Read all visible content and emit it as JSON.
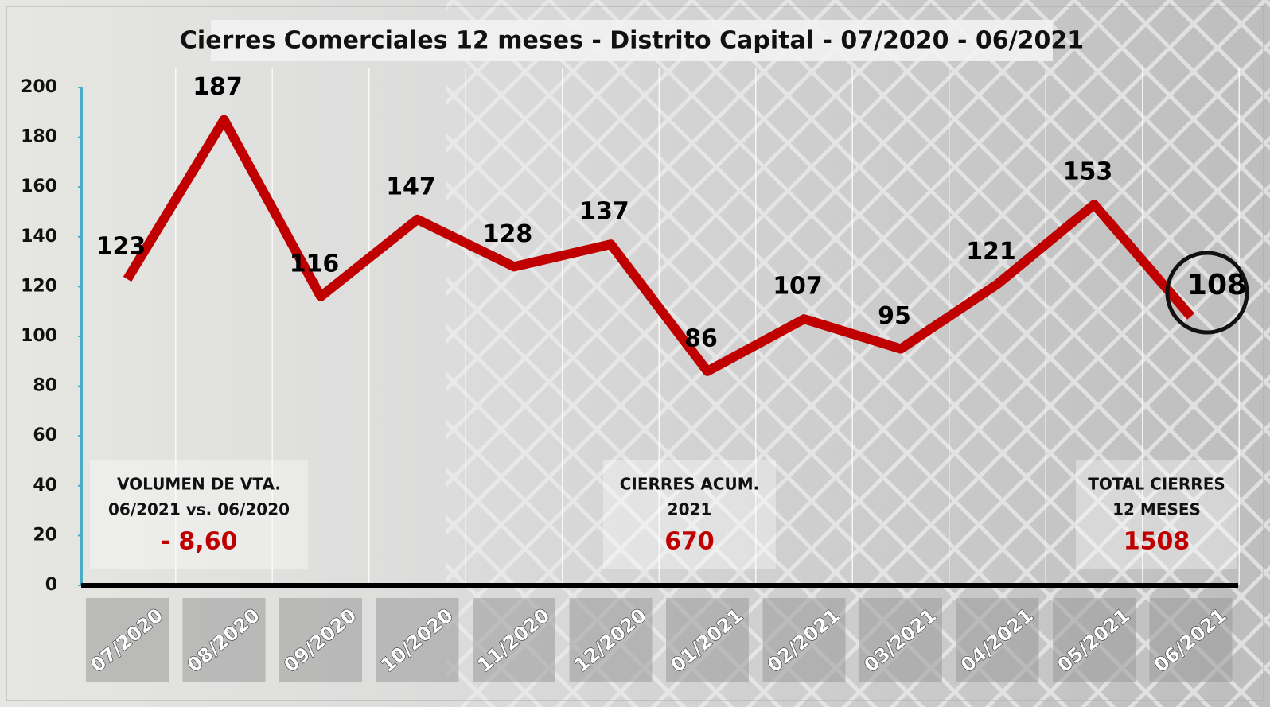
{
  "chart_data": {
    "type": "line",
    "title": "Cierres Comerciales 12 meses - Distrito Capital - 07/2020 - 06/2021",
    "categories": [
      "07/2020",
      "08/2020",
      "09/2020",
      "10/2020",
      "11/2020",
      "12/2020",
      "01/2021",
      "02/2021",
      "03/2021",
      "04/2021",
      "05/2021",
      "06/2021"
    ],
    "values": [
      123,
      187,
      116,
      147,
      128,
      137,
      86,
      107,
      95,
      121,
      153,
      108
    ],
    "color": "#c00000",
    "ylim": [
      0,
      200
    ],
    "yticks": [
      0,
      20,
      40,
      60,
      80,
      100,
      120,
      140,
      160,
      180,
      200
    ],
    "grid": true,
    "annotations": [
      {
        "lines": [
          "VOLUMEN DE VTA.",
          "06/2021 vs. 06/2020"
        ],
        "value": "- 8,60"
      },
      {
        "lines": [
          "CIERRES ACUM.",
          "2021"
        ],
        "value": 670
      },
      {
        "lines": [
          "TOTAL CIERRES",
          "12 MESES"
        ],
        "value": 1508
      }
    ]
  }
}
